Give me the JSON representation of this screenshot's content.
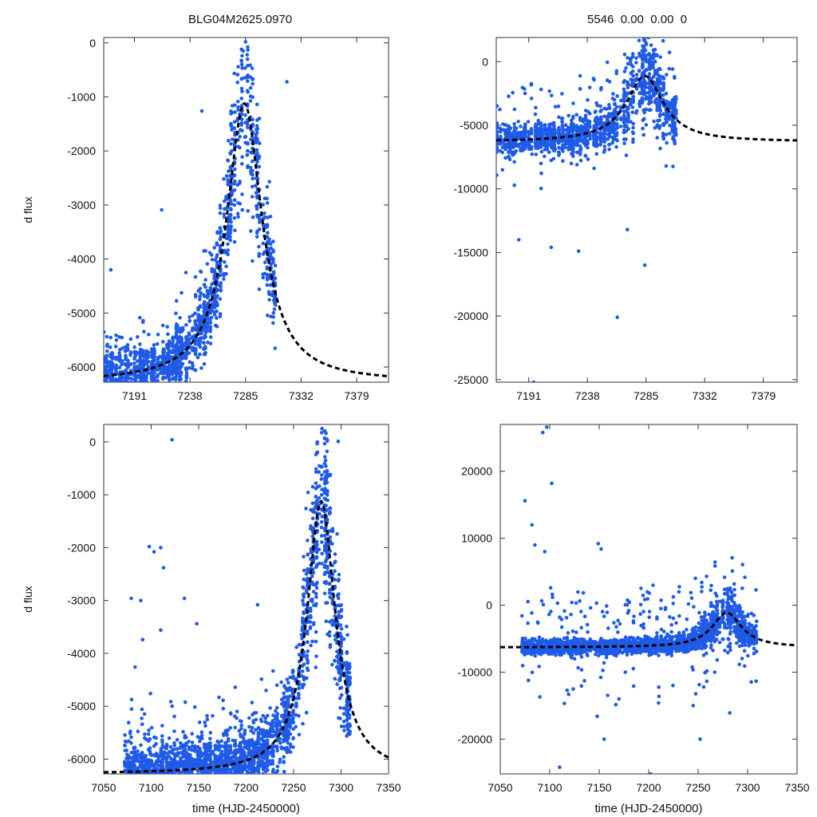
{
  "titles": {
    "left": "BLG04M2625.0970",
    "right": "5546  0.00  0.00  0"
  },
  "colors": {
    "points": "#1f5be8",
    "model": "#000000",
    "frame": "#333333"
  },
  "chart_data": [
    {
      "id": "top-left",
      "type": "scatter",
      "ylabel": "d flux",
      "xlabel": "",
      "xlim": [
        7165,
        7406
      ],
      "ylim": [
        -6280,
        100
      ],
      "xticks": [
        7191,
        7238,
        7285,
        7332,
        7379
      ],
      "yticks": [
        0,
        -1000,
        -2000,
        -3000,
        -4000,
        -5000,
        -6000
      ],
      "model": {
        "t0": 7284,
        "baseline": -6280,
        "peak": -1120,
        "tau": 18
      },
      "sample": {
        "start": 7165,
        "end": 7310,
        "base_sigma": 350
      },
      "outliers": [
        [
          7285,
          20
        ],
        [
          7283,
          -150
        ],
        [
          7214,
          -3090
        ],
        [
          7248,
          -1260
        ],
        [
          7320,
          -720
        ],
        [
          7171,
          -4200
        ]
      ]
    },
    {
      "id": "top-right",
      "type": "scatter",
      "ylabel": "",
      "xlabel": "",
      "xlim": [
        7165,
        7406
      ],
      "ylim": [
        -25200,
        1900
      ],
      "xticks": [
        7191,
        7238,
        7285,
        7332,
        7379
      ],
      "yticks": [
        0,
        -5000,
        -10000,
        -15000,
        -20000,
        -25000
      ],
      "model": {
        "t0": 7284,
        "baseline": -6300,
        "peak": -1120,
        "tau": 18
      },
      "sample": {
        "start": 7165,
        "end": 7310,
        "base_sigma": 900
      },
      "outliers": [
        [
          7287,
          1900
        ],
        [
          7284,
          -16000
        ],
        [
          7262,
          -20100
        ],
        [
          7195,
          -25200
        ],
        [
          7183,
          -14000
        ],
        [
          7231,
          -14900
        ],
        [
          7209,
          -14600
        ],
        [
          7270,
          -13200
        ]
      ]
    },
    {
      "id": "bottom-left",
      "type": "scatter",
      "ylabel": "d flux",
      "xlabel": "time (HJD-2450000)",
      "xlim": [
        7050,
        7350
      ],
      "ylim": [
        -6280,
        330
      ],
      "xticks": [
        7050,
        7100,
        7150,
        7200,
        7250,
        7300,
        7350
      ],
      "yticks": [
        0,
        -1000,
        -2000,
        -3000,
        -4000,
        -5000,
        -6000
      ],
      "model": {
        "t0": 7279,
        "baseline": -6280,
        "peak": -1120,
        "tau": 18
      },
      "sample": {
        "start": 7072,
        "end": 7310,
        "base_sigma": 420
      },
      "outliers": [
        [
          7122,
          40
        ],
        [
          7098,
          -1980
        ],
        [
          7103,
          -2080
        ],
        [
          7110,
          -2000
        ],
        [
          7079,
          -2960
        ],
        [
          7089,
          -3000
        ],
        [
          7113,
          -2380
        ],
        [
          7135,
          -2960
        ],
        [
          7212,
          -3080
        ],
        [
          7148,
          -3440
        ],
        [
          7083,
          -4260
        ],
        [
          7091,
          -3740
        ],
        [
          7110,
          -3560
        ],
        [
          7263,
          -1260
        ],
        [
          7297,
          10
        ]
      ]
    },
    {
      "id": "bottom-right",
      "type": "scatter",
      "ylabel": "",
      "xlabel": "time (HJD-2450000)",
      "xlim": [
        7050,
        7350
      ],
      "ylim": [
        -25200,
        27000
      ],
      "xticks": [
        7050,
        7100,
        7150,
        7200,
        7250,
        7300,
        7350
      ],
      "yticks": [
        20000,
        10000,
        0,
        -10000,
        -20000
      ],
      "model": {
        "t0": 7279,
        "baseline": -6300,
        "peak": -1120,
        "tau": 18
      },
      "sample": {
        "start": 7072,
        "end": 7310,
        "base_sigma": 900
      },
      "outliers": [
        [
          7097,
          26600
        ],
        [
          7093,
          25800
        ],
        [
          7102,
          18200
        ],
        [
          7075,
          15600
        ],
        [
          7082,
          12000
        ],
        [
          7085,
          9000
        ],
        [
          7095,
          8000
        ],
        [
          7149,
          9200
        ],
        [
          7152,
          8400
        ],
        [
          7101,
          2600
        ],
        [
          7148,
          -16600
        ],
        [
          7155,
          -20000
        ],
        [
          7110,
          -24200
        ],
        [
          7202,
          -25200
        ],
        [
          7252,
          -20000
        ],
        [
          7282,
          -16100
        ],
        [
          7090,
          -13700
        ],
        [
          7170,
          -14000
        ],
        [
          7210,
          -14600
        ],
        [
          7245,
          -15000
        ]
      ]
    }
  ]
}
